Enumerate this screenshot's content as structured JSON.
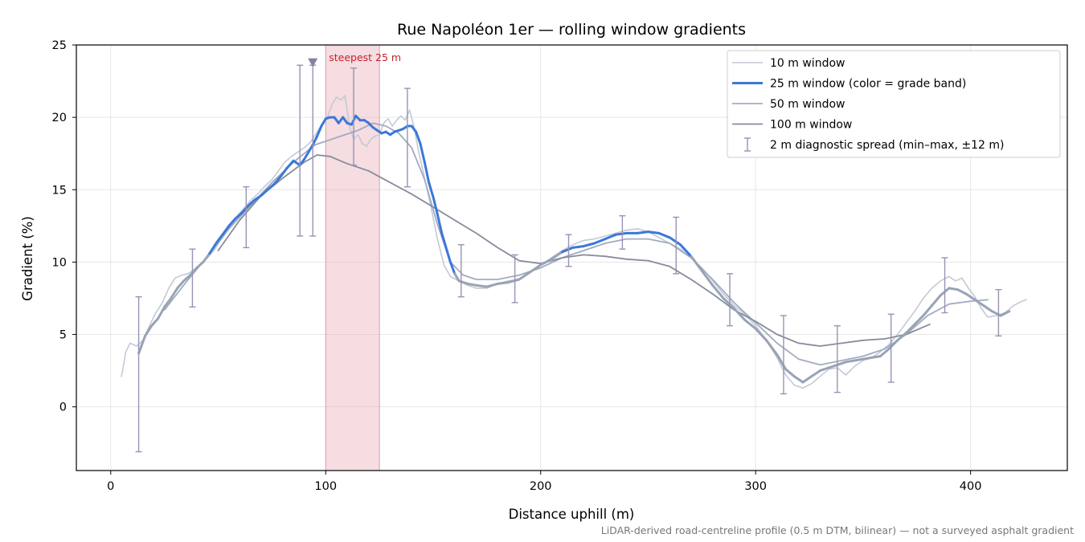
{
  "chart_data": {
    "type": "line",
    "title": "Rue Napoléon 1er — rolling window gradients",
    "xlabel": "Distance uphill (m)",
    "ylabel": "Gradient (%)",
    "xlim": [
      -16,
      445
    ],
    "ylim": [
      -4.4,
      25
    ],
    "xticks": [
      0,
      100,
      200,
      300,
      400
    ],
    "yticks": [
      0,
      5,
      10,
      15,
      20,
      25
    ],
    "grid": true,
    "legend_position": "upper right",
    "caption": "LiDAR-derived road-centreline profile (0.5 m DTM, bilinear) — not a surveyed asphalt gradient",
    "highlight": {
      "label": "steepest 25 m",
      "x_start": 100,
      "x_end": 125,
      "color": "#e8b4bc"
    },
    "marker": {
      "x": 94,
      "y": 23.8,
      "shape": "down-triangle",
      "color": "#8a7fa8"
    },
    "series": [
      {
        "name": "10 m window",
        "color": "#c3c9d5",
        "width": 1.6,
        "x": [
          5,
          7,
          9,
          12,
          15,
          18,
          21,
          24,
          27,
          30,
          33,
          36,
          39,
          42,
          45,
          48,
          51,
          54,
          57,
          60,
          63,
          66,
          69,
          72,
          75,
          78,
          81,
          84,
          87,
          90,
          93,
          96,
          99,
          101,
          103,
          105,
          107,
          109,
          111,
          113,
          115,
          117,
          119,
          121,
          123,
          125,
          127,
          129,
          131,
          133,
          135,
          137,
          139,
          141,
          143,
          146,
          149,
          152,
          155,
          158,
          162,
          166,
          170,
          175,
          180,
          185,
          190,
          195,
          200,
          205,
          210,
          215,
          220,
          225,
          230,
          235,
          240,
          245,
          250,
          255,
          260,
          265,
          270,
          275,
          280,
          285,
          290,
          295,
          300,
          305,
          310,
          314,
          318,
          322,
          326,
          330,
          334,
          338,
          342,
          346,
          350,
          354,
          358,
          362,
          366,
          370,
          374,
          378,
          382,
          386,
          390,
          393,
          396,
          399,
          402,
          405,
          408,
          412,
          416,
          420,
          424,
          426
        ],
        "y": [
          2.1,
          3.8,
          4.4,
          4.2,
          4.6,
          5.6,
          6.5,
          7.2,
          8.2,
          8.9,
          9.1,
          9.2,
          9.5,
          9.9,
          10.3,
          10.8,
          11.5,
          12.1,
          12.8,
          13.4,
          13.9,
          14.4,
          14.8,
          15.3,
          15.7,
          16.3,
          16.9,
          17.3,
          17.6,
          17.9,
          18.3,
          19.0,
          19.7,
          20.1,
          20.9,
          21.4,
          21.2,
          21.5,
          19.4,
          18.5,
          18.8,
          18.2,
          18.0,
          18.5,
          18.7,
          18.8,
          19.6,
          19.9,
          19.4,
          19.8,
          20.1,
          19.8,
          20.5,
          19.4,
          17.8,
          15.8,
          13.8,
          11.6,
          9.8,
          9.0,
          8.7,
          8.4,
          8.2,
          8.2,
          8.5,
          8.7,
          8.8,
          9.3,
          9.8,
          10.3,
          10.8,
          11.2,
          11.5,
          11.6,
          11.8,
          12.0,
          12.2,
          12.3,
          12.1,
          11.7,
          11.3,
          10.9,
          10.3,
          9.6,
          8.7,
          7.8,
          7.0,
          6.4,
          5.6,
          4.6,
          3.4,
          2.2,
          1.5,
          1.3,
          1.6,
          2.1,
          2.6,
          2.7,
          2.2,
          2.8,
          3.2,
          3.4,
          3.8,
          4.3,
          5.0,
          5.8,
          6.6,
          7.5,
          8.2,
          8.7,
          9.0,
          8.7,
          8.9,
          8.2,
          7.6,
          6.8,
          6.2,
          6.3,
          6.5,
          7.0,
          7.3,
          7.4
        ]
      },
      {
        "name": "25 m window (color = grade band)",
        "color": "#3b78d8",
        "width": 3.0,
        "x": [
          13,
          16,
          19,
          22,
          25,
          28,
          31,
          34,
          37,
          40,
          43,
          46,
          49,
          52,
          55,
          58,
          61,
          64,
          67,
          70,
          73,
          76,
          79,
          82,
          85,
          88,
          90,
          92,
          94,
          96,
          98,
          100,
          102,
          104,
          106,
          108,
          110,
          112,
          114,
          116,
          118,
          120,
          122,
          124,
          126,
          128,
          130,
          132,
          134,
          136,
          138,
          140,
          142,
          144,
          146,
          148,
          150,
          152,
          154,
          156,
          158,
          160,
          162,
          166,
          170,
          175,
          180,
          185,
          190,
          195,
          200,
          205,
          210,
          215,
          220,
          225,
          230,
          235,
          240,
          245,
          250,
          255,
          260,
          265,
          270,
          275,
          280,
          285,
          290,
          295,
          300,
          305,
          310,
          314,
          318,
          322,
          326,
          330,
          334,
          338,
          342,
          346,
          350,
          354,
          358,
          362,
          366,
          370,
          374,
          378,
          382,
          386,
          390,
          394,
          398,
          402,
          406,
          410,
          414,
          418
        ],
        "y": [
          3.7,
          4.9,
          5.6,
          6.1,
          6.9,
          7.5,
          8.2,
          8.7,
          9.1,
          9.6,
          10.0,
          10.6,
          11.3,
          11.9,
          12.5,
          13.0,
          13.4,
          13.9,
          14.3,
          14.6,
          15.0,
          15.4,
          15.9,
          16.5,
          17.0,
          16.7,
          17.1,
          17.6,
          18.1,
          18.7,
          19.4,
          19.9,
          20.0,
          20.0,
          19.6,
          20.0,
          19.6,
          19.5,
          20.1,
          19.8,
          19.8,
          19.6,
          19.3,
          19.1,
          18.9,
          19.0,
          18.8,
          19.0,
          19.1,
          19.2,
          19.4,
          19.4,
          19.0,
          18.2,
          16.9,
          15.5,
          14.5,
          13.3,
          12.0,
          11.0,
          10.0,
          9.2,
          8.7,
          8.5,
          8.4,
          8.3,
          8.5,
          8.6,
          8.8,
          9.3,
          9.8,
          10.2,
          10.7,
          11.0,
          11.1,
          11.3,
          11.6,
          11.9,
          12.0,
          12.0,
          12.1,
          12.0,
          11.7,
          11.2,
          10.4,
          9.4,
          8.4,
          7.5,
          6.8,
          6.0,
          5.4,
          4.6,
          3.6,
          2.6,
          2.1,
          1.7,
          2.1,
          2.5,
          2.7,
          2.9,
          3.1,
          3.2,
          3.3,
          3.4,
          3.5,
          4.0,
          4.6,
          5.1,
          5.7,
          6.3,
          7.0,
          7.7,
          8.2,
          8.1,
          7.8,
          7.4,
          7.0,
          6.6,
          6.3,
          6.6
        ],
        "colors": [
          "#98a3b5",
          "#98a3b5",
          "#98a3b5",
          "#98a3b5",
          "#98a3b5",
          "#98a3b5",
          "#98a3b5",
          "#98a3b5",
          "#98a3b5",
          "#98a3b5",
          "#98a3b5",
          "#3b78d8",
          "#3b78d8",
          "#3b78d8",
          "#3b78d8",
          "#3b78d8",
          "#3b78d8",
          "#3b78d8",
          "#3b78d8",
          "#3b78d8",
          "#3b78d8",
          "#3b78d8",
          "#3b78d8",
          "#3b78d8",
          "#3b78d8",
          "#3b78d8",
          "#3b78d8",
          "#3b78d8",
          "#3b78d8",
          "#3b78d8",
          "#3b78d8",
          "#3b78d8",
          "#3b78d8",
          "#3b78d8",
          "#3b78d8",
          "#3b78d8",
          "#3b78d8",
          "#3b78d8",
          "#3b78d8",
          "#3b78d8",
          "#3b78d8",
          "#3b78d8",
          "#3b78d8",
          "#3b78d8",
          "#3b78d8",
          "#3b78d8",
          "#3b78d8",
          "#3b78d8",
          "#3b78d8",
          "#3b78d8",
          "#3b78d8",
          "#3b78d8",
          "#3b78d8",
          "#3b78d8",
          "#3b78d8",
          "#3b78d8",
          "#3b78d8",
          "#3b78d8",
          "#3b78d8",
          "#3b78d8",
          "#3b78d8",
          "#98a3b5",
          "#98a3b5",
          "#98a3b5",
          "#98a3b5",
          "#98a3b5",
          "#98a3b5",
          "#98a3b5",
          "#98a3b5",
          "#98a3b5",
          "#98a3b5",
          "#98a3b5",
          "#3b78d8",
          "#3b78d8",
          "#3b78d8",
          "#3b78d8",
          "#3b78d8",
          "#3b78d8",
          "#3b78d8",
          "#3b78d8",
          "#3b78d8",
          "#3b78d8",
          "#3b78d8",
          "#3b78d8",
          "#98a3b5",
          "#98a3b5",
          "#98a3b5",
          "#98a3b5",
          "#98a3b5",
          "#98a3b5",
          "#98a3b5",
          "#98a3b5",
          "#98a3b5",
          "#98a3b5",
          "#98a3b5",
          "#98a3b5",
          "#98a3b5",
          "#98a3b5",
          "#98a3b5",
          "#98a3b5",
          "#98a3b5",
          "#98a3b5",
          "#98a3b5",
          "#98a3b5",
          "#98a3b5",
          "#98a3b5",
          "#98a3b5",
          "#98a3b5",
          "#98a3b5",
          "#98a3b5",
          "#98a3b5",
          "#98a3b5",
          "#98a3b5",
          "#98a3b5",
          "#98a3b5",
          "#98a3b5",
          "#98a3b5",
          "#98a3b5",
          "#98a3b5",
          "#98a3b5"
        ]
      },
      {
        "name": "50 m window",
        "color": "#a2abc0",
        "width": 1.8,
        "x": [
          25,
          35,
          45,
          55,
          65,
          75,
          85,
          95,
          105,
          115,
          122,
          128,
          134,
          140,
          146,
          152,
          158,
          164,
          170,
          180,
          190,
          200,
          210,
          220,
          230,
          240,
          250,
          260,
          270,
          280,
          290,
          300,
          310,
          320,
          330,
          340,
          350,
          360,
          370,
          380,
          390,
          400,
          408
        ],
        "y": [
          6.7,
          8.6,
          10.4,
          12.3,
          13.9,
          15.5,
          16.9,
          18.1,
          18.6,
          19.1,
          19.6,
          19.4,
          18.9,
          17.9,
          15.7,
          12.6,
          10.0,
          9.1,
          8.8,
          8.8,
          9.1,
          9.6,
          10.3,
          10.8,
          11.3,
          11.6,
          11.6,
          11.3,
          10.3,
          8.8,
          7.2,
          5.8,
          4.4,
          3.3,
          2.9,
          3.2,
          3.5,
          4.0,
          5.0,
          6.3,
          7.1,
          7.3,
          7.4
        ]
      },
      {
        "name": "100 m window",
        "color": "#868c9d",
        "width": 1.8,
        "x": [
          50,
          60,
          70,
          80,
          90,
          96,
          102,
          110,
          120,
          130,
          140,
          150,
          160,
          170,
          180,
          190,
          200,
          210,
          220,
          230,
          240,
          250,
          260,
          270,
          280,
          290,
          300,
          310,
          320,
          330,
          340,
          350,
          360,
          370,
          381
        ],
        "y": [
          10.8,
          12.9,
          14.6,
          15.8,
          16.9,
          17.4,
          17.3,
          16.8,
          16.3,
          15.5,
          14.7,
          13.8,
          12.9,
          12.0,
          11.0,
          10.1,
          9.9,
          10.3,
          10.5,
          10.4,
          10.2,
          10.1,
          9.7,
          8.8,
          7.8,
          6.7,
          5.9,
          5.0,
          4.4,
          4.2,
          4.4,
          4.6,
          4.7,
          5.0,
          5.7
        ]
      }
    ],
    "error_bars": {
      "name": "2 m diagnostic spread (min–max, ±12 m)",
      "color": "#9992b5",
      "points": [
        {
          "x": 13,
          "low": -3.1,
          "high": 7.6
        },
        {
          "x": 38,
          "low": 6.9,
          "high": 10.9
        },
        {
          "x": 63,
          "low": 11.0,
          "high": 15.2
        },
        {
          "x": 88,
          "low": 11.8,
          "high": 23.6
        },
        {
          "x": 94,
          "low": 11.8,
          "high": 23.6
        },
        {
          "x": 113,
          "low": 16.7,
          "high": 23.4
        },
        {
          "x": 138,
          "low": 15.2,
          "high": 22.0
        },
        {
          "x": 163,
          "low": 7.6,
          "high": 11.2
        },
        {
          "x": 188,
          "low": 7.2,
          "high": 10.5
        },
        {
          "x": 213,
          "low": 9.7,
          "high": 11.9
        },
        {
          "x": 238,
          "low": 10.9,
          "high": 13.2
        },
        {
          "x": 263,
          "low": 9.2,
          "high": 13.1
        },
        {
          "x": 288,
          "low": 5.6,
          "high": 9.2
        },
        {
          "x": 313,
          "low": 0.9,
          "high": 6.3
        },
        {
          "x": 338,
          "low": 1.0,
          "high": 5.6
        },
        {
          "x": 363,
          "low": 1.7,
          "high": 6.4
        },
        {
          "x": 388,
          "low": 6.5,
          "high": 10.3
        },
        {
          "x": 413,
          "low": 4.9,
          "high": 8.1
        }
      ]
    }
  }
}
